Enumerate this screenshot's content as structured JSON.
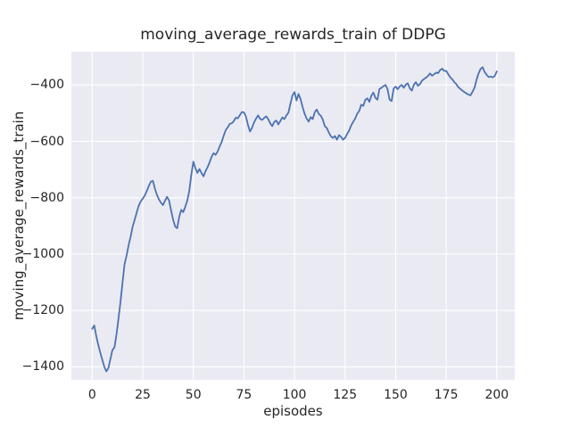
{
  "chart_data": {
    "type": "line",
    "title": "moving_average_rewards_train of DDPG",
    "xlabel": "episodes",
    "ylabel": "moving_average_rewards_train",
    "x_ticks": [
      0,
      25,
      50,
      75,
      100,
      125,
      150,
      175,
      200
    ],
    "x_tick_labels": [
      "0",
      "25",
      "50",
      "75",
      "100",
      "125",
      "150",
      "175",
      "200"
    ],
    "y_ticks": [
      -400,
      -600,
      -800,
      -1000,
      -1200,
      -1400
    ],
    "y_tick_labels": [
      "−400",
      "−600",
      "−800",
      "−1000",
      "−1200",
      "−1400"
    ],
    "xlim": [
      -10.3,
      208.9
    ],
    "ylim": [
      -1446,
      -282
    ],
    "grid": true,
    "legend": "none",
    "x_start": 0,
    "x_step": 1,
    "series": [
      {
        "name": "moving_average_rewards_train",
        "values": [
          -1265,
          -1253,
          -1290,
          -1322,
          -1350,
          -1375,
          -1400,
          -1416,
          -1404,
          -1372,
          -1340,
          -1331,
          -1285,
          -1228,
          -1168,
          -1100,
          -1035,
          -1005,
          -968,
          -938,
          -902,
          -878,
          -852,
          -828,
          -813,
          -803,
          -792,
          -776,
          -758,
          -743,
          -740,
          -768,
          -790,
          -806,
          -818,
          -826,
          -810,
          -797,
          -810,
          -845,
          -878,
          -902,
          -908,
          -868,
          -843,
          -851,
          -832,
          -810,
          -775,
          -718,
          -672,
          -695,
          -712,
          -698,
          -712,
          -724,
          -706,
          -692,
          -675,
          -655,
          -642,
          -648,
          -636,
          -618,
          -602,
          -580,
          -560,
          -550,
          -538,
          -536,
          -528,
          -516,
          -518,
          -507,
          -496,
          -497,
          -512,
          -542,
          -565,
          -552,
          -533,
          -519,
          -508,
          -520,
          -524,
          -517,
          -511,
          -521,
          -536,
          -546,
          -531,
          -526,
          -540,
          -528,
          -515,
          -521,
          -508,
          -498,
          -466,
          -437,
          -425,
          -455,
          -432,
          -450,
          -478,
          -502,
          -519,
          -530,
          -514,
          -521,
          -497,
          -487,
          -503,
          -509,
          -523,
          -546,
          -553,
          -569,
          -582,
          -588,
          -581,
          -594,
          -578,
          -584,
          -594,
          -588,
          -574,
          -562,
          -544,
          -531,
          -519,
          -502,
          -492,
          -470,
          -474,
          -453,
          -447,
          -460,
          -438,
          -427,
          -446,
          -452,
          -414,
          -410,
          -404,
          -400,
          -415,
          -452,
          -457,
          -413,
          -406,
          -415,
          -405,
          -400,
          -410,
          -399,
          -394,
          -412,
          -420,
          -399,
          -390,
          -403,
          -397,
          -385,
          -379,
          -374,
          -368,
          -359,
          -367,
          -362,
          -356,
          -358,
          -347,
          -342,
          -350,
          -350,
          -362,
          -373,
          -380,
          -390,
          -397,
          -408,
          -414,
          -420,
          -425,
          -430,
          -434,
          -437,
          -424,
          -410,
          -381,
          -359,
          -343,
          -337,
          -354,
          -364,
          -372,
          -370,
          -373,
          -368,
          -352
        ]
      }
    ],
    "colors": {
      "line": "#4C72B0",
      "plot_background": "#EAEAF2",
      "grid": "#FFFFFF",
      "figure_background": "#FFFFFF",
      "text": "#262626"
    }
  }
}
